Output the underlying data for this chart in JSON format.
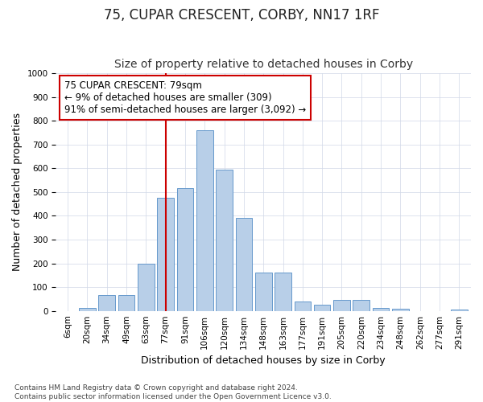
{
  "title": "75, CUPAR CRESCENT, CORBY, NN17 1RF",
  "subtitle": "Size of property relative to detached houses in Corby",
  "xlabel": "Distribution of detached houses by size in Corby",
  "ylabel": "Number of detached properties",
  "bar_labels": [
    "6sqm",
    "20sqm",
    "34sqm",
    "49sqm",
    "63sqm",
    "77sqm",
    "91sqm",
    "106sqm",
    "120sqm",
    "134sqm",
    "148sqm",
    "163sqm",
    "177sqm",
    "191sqm",
    "205sqm",
    "220sqm",
    "234sqm",
    "248sqm",
    "262sqm",
    "277sqm",
    "291sqm"
  ],
  "bar_values": [
    0,
    13,
    65,
    65,
    200,
    475,
    515,
    760,
    595,
    390,
    160,
    160,
    40,
    25,
    45,
    45,
    13,
    8,
    0,
    0,
    5
  ],
  "bar_color": "#b8cfe8",
  "bar_edge_color": "#6699cc",
  "vline_x_index": 5,
  "vline_color": "#cc0000",
  "annotation_text": "75 CUPAR CRESCENT: 79sqm\n← 9% of detached houses are smaller (309)\n91% of semi-detached houses are larger (3,092) →",
  "annotation_box_color": "#cc0000",
  "ylim": [
    0,
    1000
  ],
  "yticks": [
    0,
    100,
    200,
    300,
    400,
    500,
    600,
    700,
    800,
    900,
    1000
  ],
  "footer_text": "Contains HM Land Registry data © Crown copyright and database right 2024.\nContains public sector information licensed under the Open Government Licence v3.0.",
  "bg_color": "#ffffff",
  "plot_bg_color": "#ffffff",
  "grid_color": "#d0d8e8",
  "title_fontsize": 12,
  "subtitle_fontsize": 10,
  "ylabel_fontsize": 9,
  "xlabel_fontsize": 9,
  "tick_fontsize": 7.5,
  "annotation_fontsize": 8.5,
  "footer_fontsize": 6.5
}
